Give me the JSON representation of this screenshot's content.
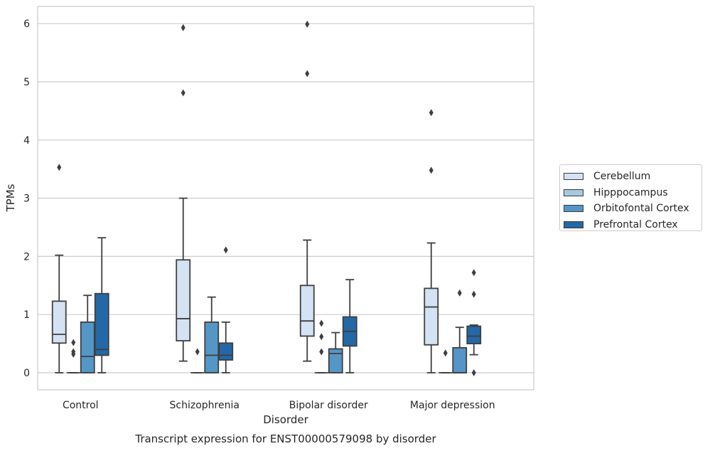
{
  "chart_data": {
    "type": "box",
    "title": "Transcript expression for ENST00000579098 by disorder",
    "xlabel": "Disorder",
    "ylabel": "TPMs",
    "ylim": [
      -0.3,
      6.3
    ],
    "yticks": [
      "0",
      "1",
      "2",
      "3",
      "4",
      "5",
      "6"
    ],
    "grid": true,
    "legend_position": "right",
    "categories": [
      "Control",
      "Schizophrenia",
      "Bipolar disorder",
      "Major depression"
    ],
    "series": [
      {
        "name": "Cerebellum",
        "color": "#d4e3f3",
        "boxes": [
          {
            "min": 0.0,
            "q1": 0.51,
            "median": 0.66,
            "q3": 1.23,
            "max": 2.02,
            "outliers": [
              3.53
            ]
          },
          {
            "min": 0.2,
            "q1": 0.55,
            "median": 0.93,
            "q3": 1.94,
            "max": 3.0,
            "outliers": [
              4.81,
              5.93
            ]
          },
          {
            "min": 0.2,
            "q1": 0.63,
            "median": 0.89,
            "q3": 1.5,
            "max": 2.28,
            "outliers": [
              5.14,
              5.99
            ]
          },
          {
            "min": 0.0,
            "q1": 0.48,
            "median": 1.13,
            "q3": 1.45,
            "max": 2.23,
            "outliers": [
              3.48,
              4.47
            ]
          }
        ]
      },
      {
        "name": "Hipppocampus",
        "color": "#a5c9e2",
        "boxes": [
          {
            "min": 0.0,
            "q1": 0.0,
            "median": 0.0,
            "q3": 0.0,
            "max": 0.0,
            "outliers": [
              0.32,
              0.36,
              0.52
            ]
          },
          {
            "min": 0.0,
            "q1": 0.0,
            "median": 0.0,
            "q3": 0.0,
            "max": 0.0,
            "outliers": [
              0.36
            ]
          },
          {
            "min": 0.0,
            "q1": 0.0,
            "median": 0.0,
            "q3": 0.0,
            "max": 0.0,
            "outliers": [
              0.36,
              0.62,
              0.85
            ]
          },
          {
            "min": 0.0,
            "q1": 0.0,
            "median": 0.0,
            "q3": 0.0,
            "max": 0.0,
            "outliers": [
              0.34
            ]
          }
        ]
      },
      {
        "name": "Orbitofontal Cortex",
        "color": "#5497c6",
        "boxes": [
          {
            "min": 0.0,
            "q1": 0.0,
            "median": 0.28,
            "q3": 0.87,
            "max": 1.33,
            "outliers": []
          },
          {
            "min": 0.0,
            "q1": 0.0,
            "median": 0.3,
            "q3": 0.87,
            "max": 1.3,
            "outliers": []
          },
          {
            "min": 0.0,
            "q1": 0.0,
            "median": 0.33,
            "q3": 0.41,
            "max": 0.69,
            "outliers": []
          },
          {
            "min": 0.0,
            "q1": 0.0,
            "median": 0.0,
            "q3": 0.43,
            "max": 0.78,
            "outliers": [
              1.37
            ]
          }
        ]
      },
      {
        "name": "Prefrontal Cortex",
        "color": "#2368a7",
        "boxes": [
          {
            "min": 0.0,
            "q1": 0.3,
            "median": 0.4,
            "q3": 1.36,
            "max": 2.32,
            "outliers": []
          },
          {
            "min": 0.0,
            "q1": 0.22,
            "median": 0.3,
            "q3": 0.51,
            "max": 0.87,
            "outliers": [
              2.11
            ]
          },
          {
            "min": 0.0,
            "q1": 0.46,
            "median": 0.71,
            "q3": 0.96,
            "max": 1.6,
            "outliers": []
          },
          {
            "min": 0.31,
            "q1": 0.5,
            "median": 0.63,
            "q3": 0.8,
            "max": 0.82,
            "outliers": [
              0.0,
              1.35,
              1.72
            ]
          }
        ]
      }
    ]
  }
}
